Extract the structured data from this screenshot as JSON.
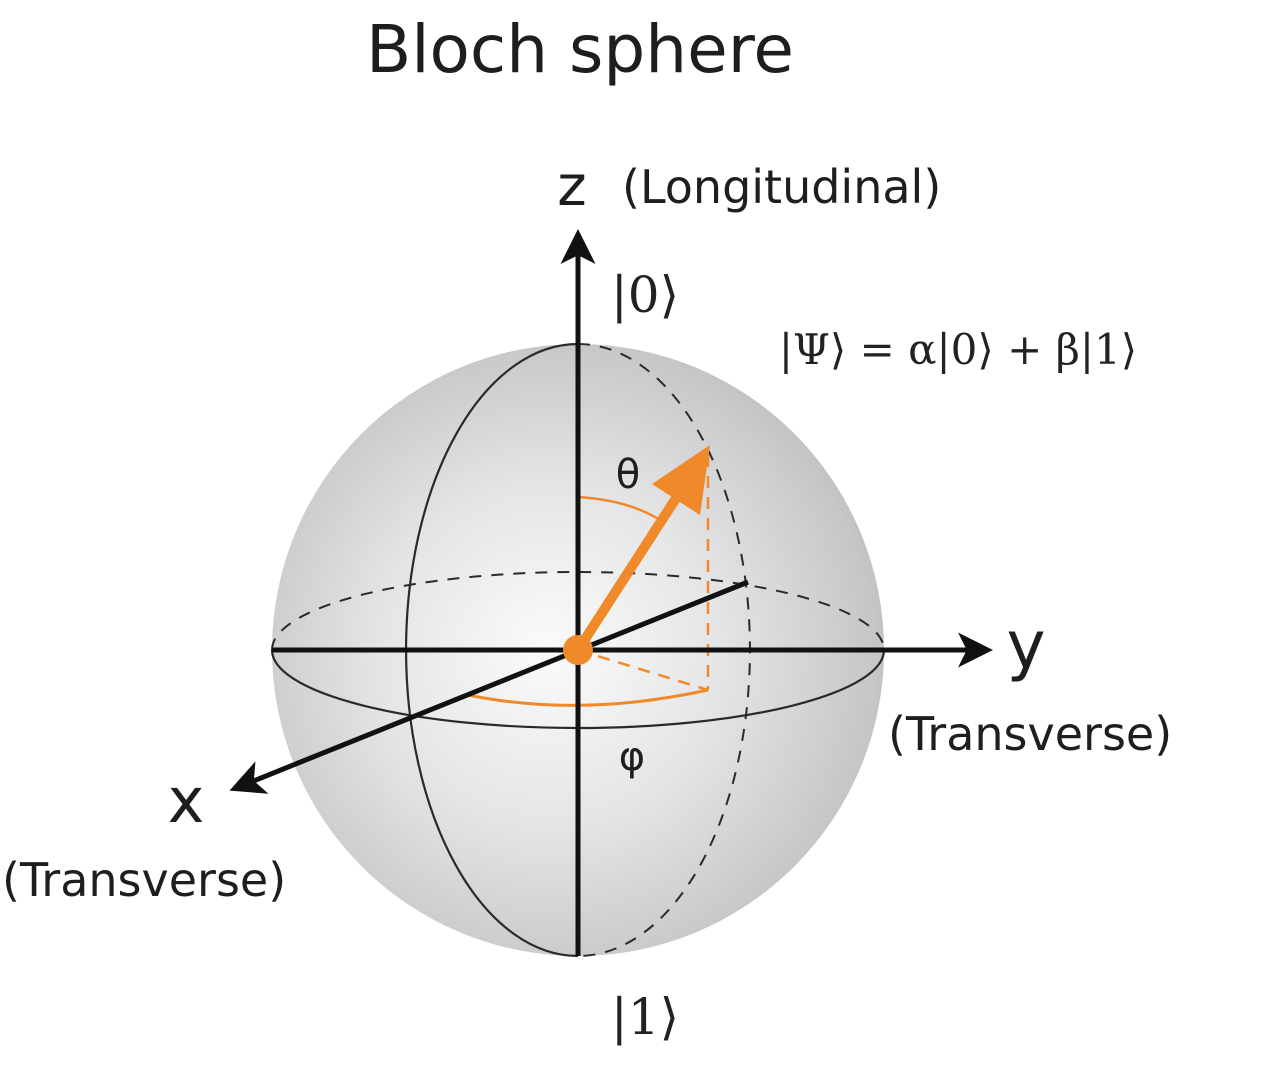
{
  "title": "Bloch sphere",
  "axes": {
    "z": {
      "letter": "z",
      "caption": "(Longitudinal)"
    },
    "y": {
      "letter": "y",
      "caption": "(Transverse)"
    },
    "x": {
      "letter": "x",
      "caption": "(Transverse)"
    }
  },
  "kets": {
    "zero": "|0⟩",
    "one": "|1⟩"
  },
  "state_equation": "|Ψ⟩ = α|0⟩ + β|1⟩",
  "angles": {
    "polar": "θ",
    "azimuthal": "φ"
  },
  "colors": {
    "state_vector": "#f0892a",
    "axes": "#111111",
    "sphere_light": "#fbfbfb",
    "sphere_dark": "#b4b6b8",
    "text": "#1e1e1e"
  }
}
